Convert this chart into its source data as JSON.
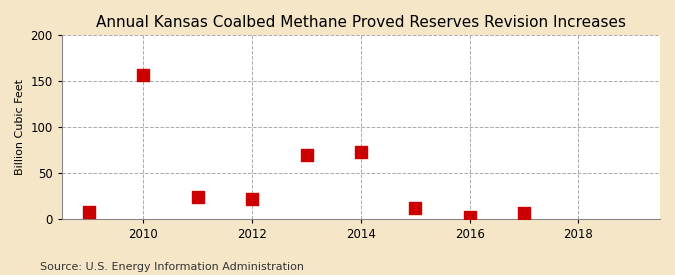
{
  "title": "Annual Kansas Coalbed Methane Proved Reserves Revision Increases",
  "ylabel": "Billion Cubic Feet",
  "source": "Source: U.S. Energy Information Administration",
  "years": [
    2009,
    2010,
    2011,
    2012,
    2013,
    2014,
    2015,
    2016,
    2017
  ],
  "values": [
    7,
    157,
    24,
    21,
    70,
    73,
    12,
    2,
    6
  ],
  "marker_color": "#cc0000",
  "marker": "s",
  "marker_size": 4,
  "xlim": [
    2008.5,
    2019.5
  ],
  "ylim": [
    0,
    200
  ],
  "yticks": [
    0,
    50,
    100,
    150,
    200
  ],
  "xticks": [
    2010,
    2012,
    2014,
    2016,
    2018
  ],
  "figure_background_color": "#f5e6c8",
  "plot_background_color": "#ffffff",
  "grid_color": "#aaaaaa",
  "title_fontsize": 11,
  "label_fontsize": 8,
  "tick_fontsize": 8.5,
  "source_fontsize": 8
}
